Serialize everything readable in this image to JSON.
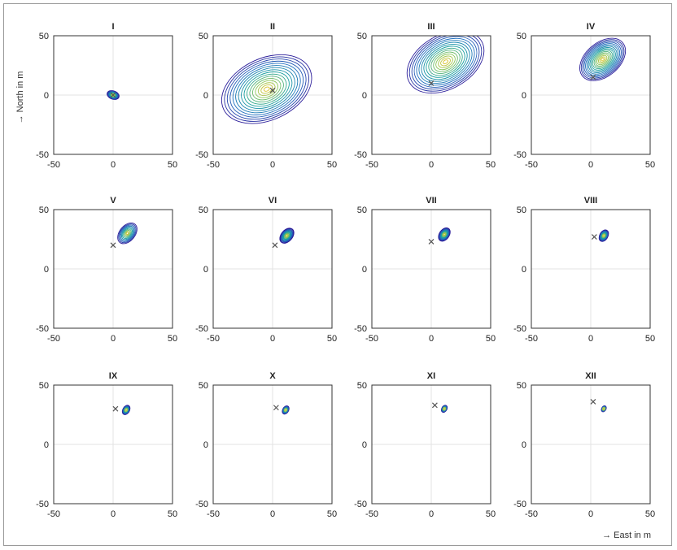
{
  "chart_data": {
    "type": "contour",
    "xlabel": "→ East in m",
    "ylabel": "→ North in m",
    "xlim": [
      -50,
      50
    ],
    "ylim": [
      -50,
      50
    ],
    "x_ticks": [
      -50,
      0,
      50
    ],
    "y_ticks": [
      -50,
      0,
      50
    ],
    "grid": true,
    "colors": {
      "low": "#2b1d9a",
      "mid1": "#1f6fbf",
      "mid2": "#1aa0a0",
      "mid3": "#8cc65a",
      "high": "#f2c21b"
    },
    "panels": [
      {
        "label": "I",
        "marker": [
          0,
          0
        ],
        "peak": [
          0,
          0
        ],
        "spread": 5,
        "orientation": -20
      },
      {
        "label": "II",
        "marker": [
          0,
          4
        ],
        "peak": [
          -5,
          5
        ],
        "spread": 40,
        "orientation": 25
      },
      {
        "label": "III",
        "marker": [
          0,
          10
        ],
        "peak": [
          12,
          28
        ],
        "spread": 35,
        "orientation": 30
      },
      {
        "label": "IV",
        "marker": [
          2,
          15
        ],
        "peak": [
          10,
          30
        ],
        "spread": 22,
        "orientation": 40
      },
      {
        "label": "V",
        "marker": [
          0,
          20
        ],
        "peak": [
          12,
          30
        ],
        "spread": 10,
        "orientation": 50
      },
      {
        "label": "VI",
        "marker": [
          2,
          20
        ],
        "peak": [
          12,
          28
        ],
        "spread": 7,
        "orientation": 50
      },
      {
        "label": "VII",
        "marker": [
          0,
          23
        ],
        "peak": [
          11,
          29
        ],
        "spread": 6,
        "orientation": 55
      },
      {
        "label": "VIII",
        "marker": [
          3,
          27
        ],
        "peak": [
          11,
          28
        ],
        "spread": 5,
        "orientation": 60
      },
      {
        "label": "IX",
        "marker": [
          2,
          30
        ],
        "peak": [
          11,
          29
        ],
        "spread": 4,
        "orientation": 60
      },
      {
        "label": "X",
        "marker": [
          3,
          31
        ],
        "peak": [
          11,
          29
        ],
        "spread": 3.5,
        "orientation": 60
      },
      {
        "label": "XI",
        "marker": [
          3,
          33
        ],
        "peak": [
          11,
          30
        ],
        "spread": 3,
        "orientation": 60
      },
      {
        "label": "XII",
        "marker": [
          2,
          36
        ],
        "peak": [
          11,
          30
        ],
        "spread": 2.5,
        "orientation": 60
      }
    ]
  }
}
